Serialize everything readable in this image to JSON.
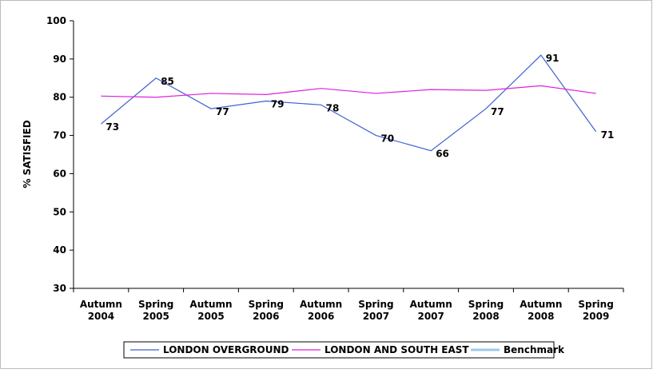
{
  "chart_data": {
    "type": "line",
    "y_label": "% SATISFIED",
    "categories": [
      "Autumn 2004",
      "Spring 2005",
      "Autumn 2005",
      "Spring 2006",
      "Autumn 2006",
      "Spring 2007",
      "Autumn 2007",
      "Spring 2008",
      "Autumn 2008",
      "Spring 2009"
    ],
    "series": [
      {
        "name": "LONDON OVERGROUND",
        "color": "#3f5fd0",
        "values": [
          73,
          85,
          77,
          79,
          78,
          70,
          66,
          77,
          91,
          71
        ],
        "data_labels": true
      },
      {
        "name": "LONDON AND SOUTH EAST",
        "color": "#e01ee0",
        "values": [
          80.3,
          80,
          81,
          80.7,
          82.3,
          81,
          82,
          81.8,
          83,
          81
        ]
      },
      {
        "name": "Benchmark",
        "color": "#9ccbec",
        "values": [
          null,
          null,
          null,
          null,
          null,
          null,
          null,
          null,
          null,
          null
        ]
      }
    ],
    "ylim": [
      30,
      100
    ],
    "yticks": [
      30,
      40,
      50,
      60,
      70,
      80,
      90,
      100
    ],
    "legend": "bottom"
  }
}
